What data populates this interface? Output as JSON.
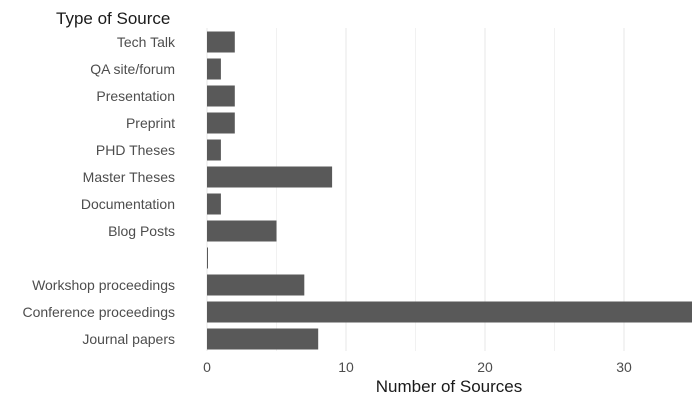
{
  "chart_data": {
    "type": "bar",
    "orientation": "horizontal",
    "ylabel": "Type of Source",
    "xlabel": "Number of Sources",
    "categories": [
      "Tech Talk",
      "QA site/forum",
      "Presentation",
      "Preprint",
      "PHD Theses",
      "Master Theses",
      "Documentation",
      "Blog Posts",
      "",
      "Workshop proceedings",
      "Conference proceedings",
      "Journal papers"
    ],
    "values": [
      2,
      1,
      2,
      2,
      1,
      9,
      1,
      5,
      0,
      7,
      35,
      8
    ],
    "xlim": [
      0,
      35
    ],
    "xticks": [
      0,
      10,
      20,
      30
    ],
    "grid": true,
    "legend": "none",
    "colors": {
      "bar": "#595959",
      "grid": "#ebebeb",
      "background": "#ffffff"
    }
  }
}
